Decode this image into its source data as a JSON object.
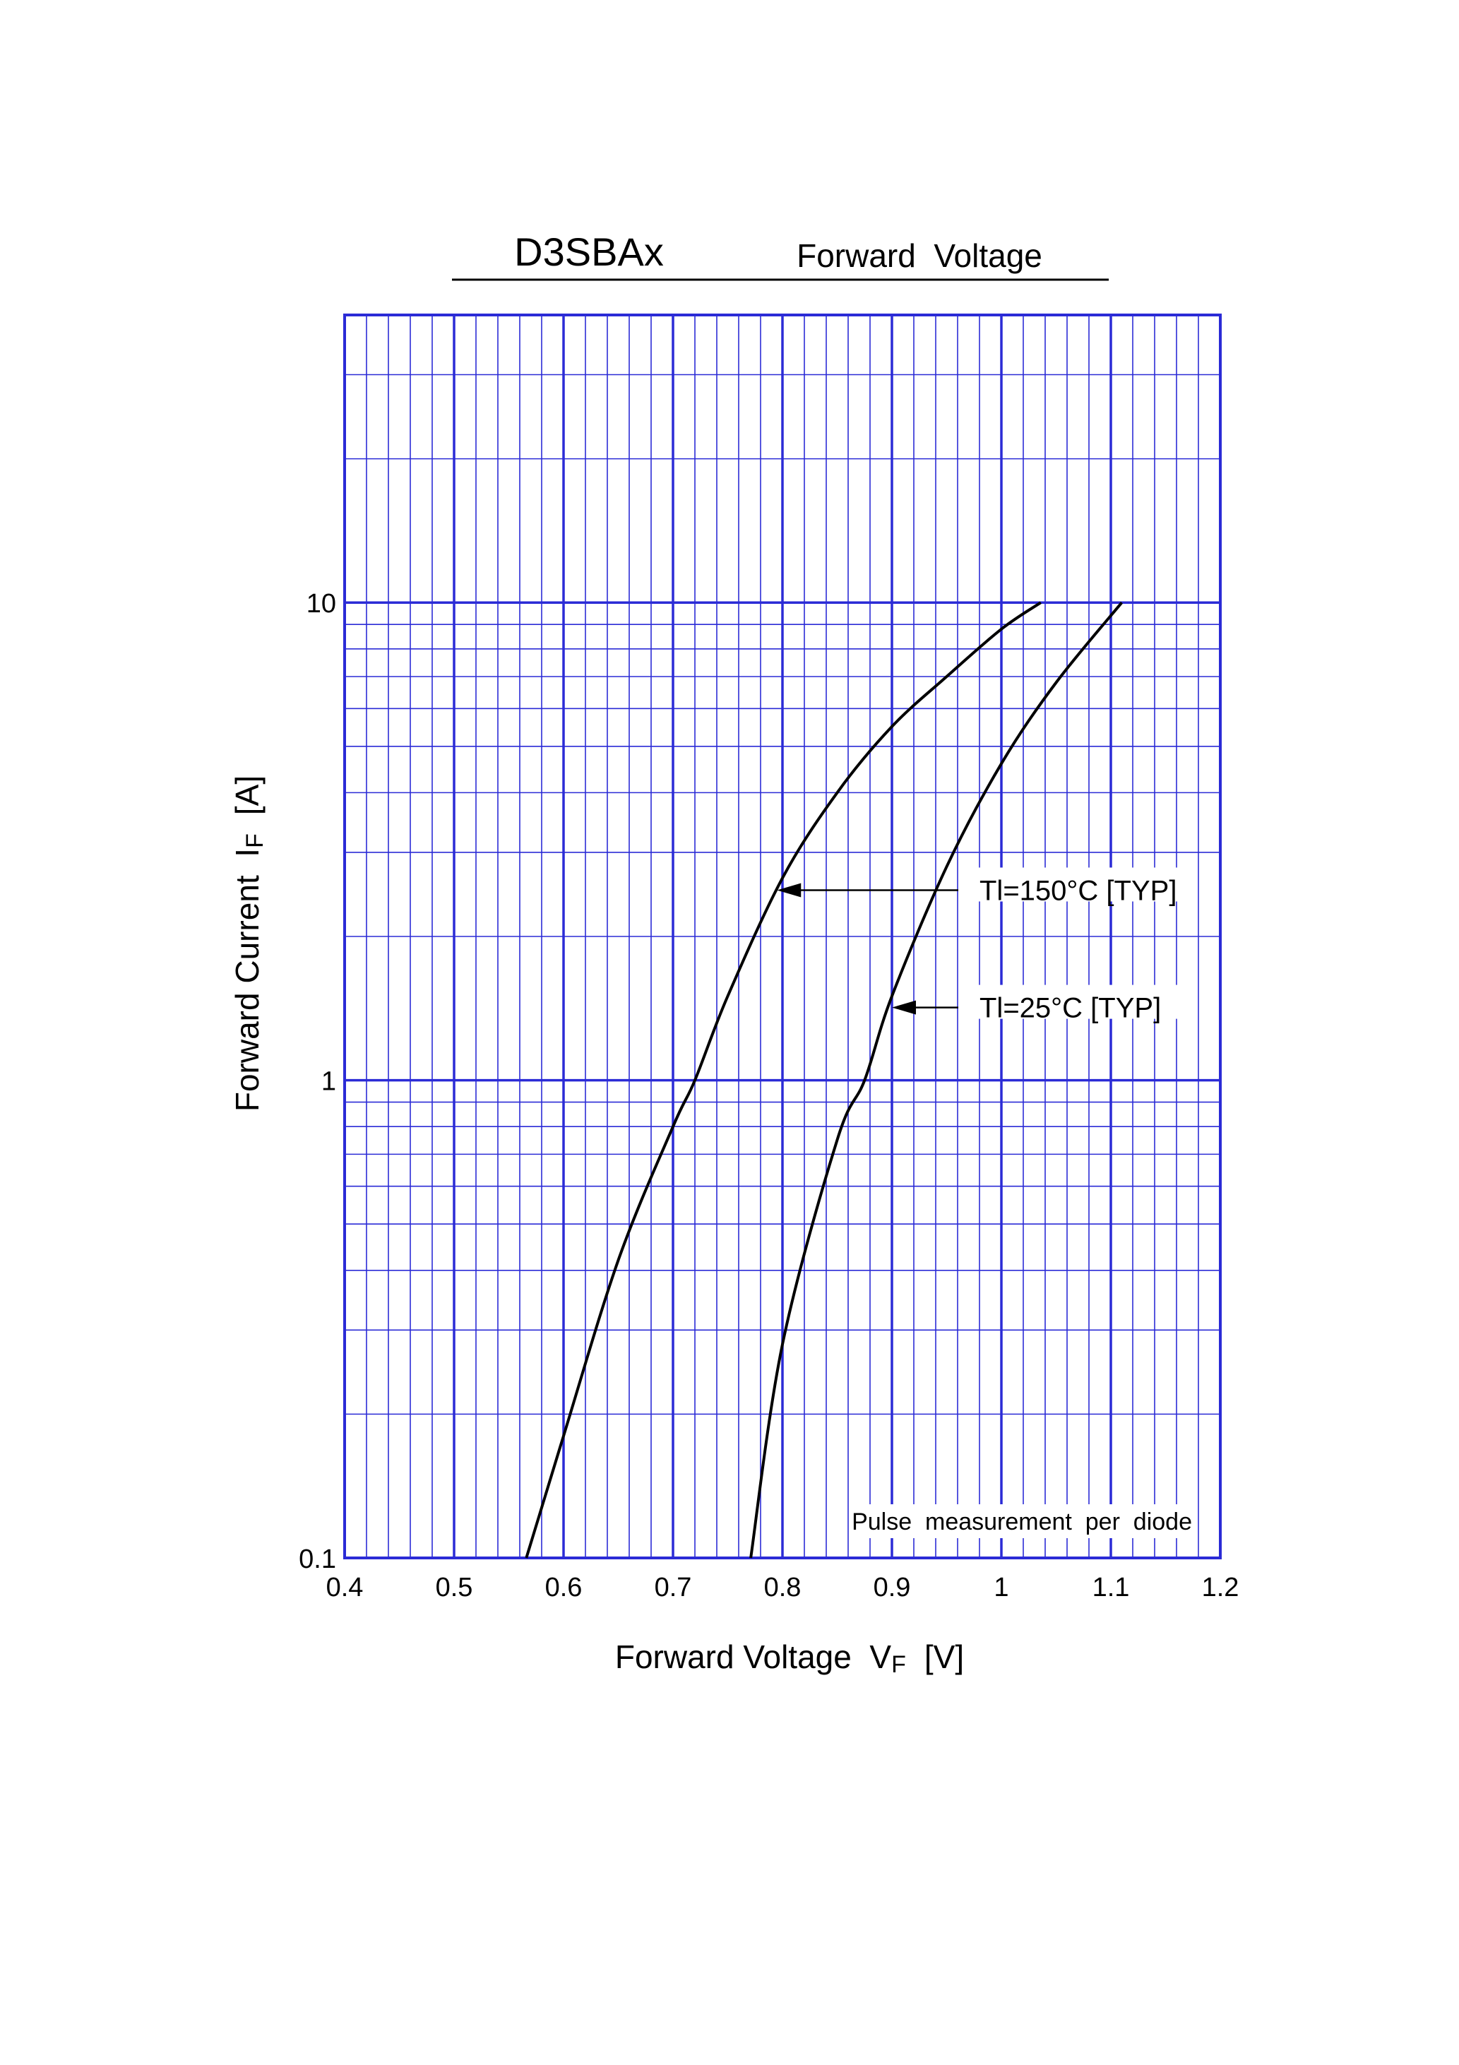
{
  "chart_data": {
    "type": "line",
    "title": "D3SBAx",
    "subtitle": "Forward  Voltage",
    "xlabel": "Forward Voltage  V",
    "xlabel_sub": "F",
    "xlabel_unit": "[V]",
    "ylabel": "Forward Current  I",
    "ylabel_sub": "F",
    "ylabel_unit": "[A]",
    "x_scale": "linear",
    "y_scale": "log",
    "xlim": [
      0.4,
      1.2
    ],
    "ylim": [
      0.1,
      40
    ],
    "x_ticks": [
      0.4,
      0.5,
      0.6,
      0.7,
      0.8,
      0.9,
      1.0,
      1.1,
      1.2
    ],
    "x_tick_labels": [
      "0.4",
      "0.5",
      "0.6",
      "0.7",
      "0.8",
      "0.9",
      "1",
      "1.1",
      "1.2"
    ],
    "y_ticks": [
      0.1,
      1,
      10
    ],
    "y_tick_labels": [
      "0.1",
      "1",
      "10"
    ],
    "grid": true,
    "grid_color": "#2b2bd6",
    "line_color": "#000000",
    "series": [
      {
        "name": "Tl=150°C [TYP]",
        "x": [
          0.566,
          0.6,
          0.65,
          0.7,
          0.72,
          0.75,
          0.8,
          0.85,
          0.9,
          0.95,
          1.0,
          1.036
        ],
        "y": [
          0.1,
          0.18,
          0.42,
          0.8,
          1.0,
          1.5,
          2.65,
          4.0,
          5.5,
          7.0,
          8.8,
          10.0
        ]
      },
      {
        "name": "Tl=25°C [TYP]",
        "x": [
          0.771,
          0.8,
          0.85,
          0.875,
          0.9,
          0.95,
          1.0,
          1.05,
          1.11
        ],
        "y": [
          0.1,
          0.28,
          0.75,
          1.0,
          1.5,
          2.8,
          4.6,
          6.8,
          10.0
        ]
      }
    ],
    "annotations": [
      {
        "text": "Tl=150°C [TYP]",
        "series": 0,
        "arrow_to_x": 0.795,
        "arrow_to_y": 2.5,
        "label_x": 0.98,
        "label_y": 2.5
      },
      {
        "text": "Tl=25°C [TYP]",
        "series": 1,
        "arrow_to_x": 0.9,
        "arrow_to_y": 1.42,
        "label_x": 0.98,
        "label_y": 1.42
      }
    ],
    "note": "Pulse  measurement  per  diode"
  }
}
